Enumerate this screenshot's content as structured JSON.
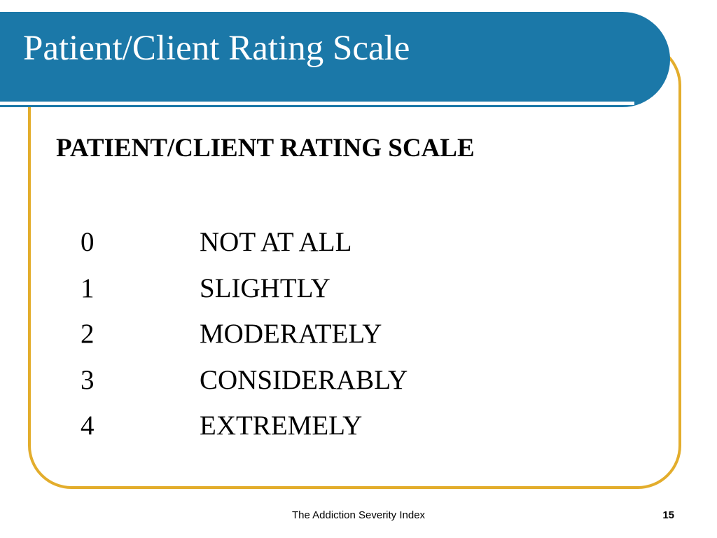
{
  "slide": {
    "title": "Patient/Client Rating Scale",
    "heading": "PATIENT/CLIENT RATING SCALE",
    "scale": [
      {
        "value": "0",
        "label": "NOT AT ALL"
      },
      {
        "value": "1",
        "label": "SLIGHTLY"
      },
      {
        "value": "2",
        "label": "MODERATELY"
      },
      {
        "value": "3",
        "label": "CONSIDERABLY"
      },
      {
        "value": "4",
        "label": "EXTREMELY"
      }
    ]
  },
  "footer": {
    "text": "The Addiction Severity Index",
    "page_number": "15"
  },
  "colors": {
    "title_bar": "#1b78a8",
    "frame_border": "#e3ad2c",
    "title_text": "#ffffff"
  }
}
